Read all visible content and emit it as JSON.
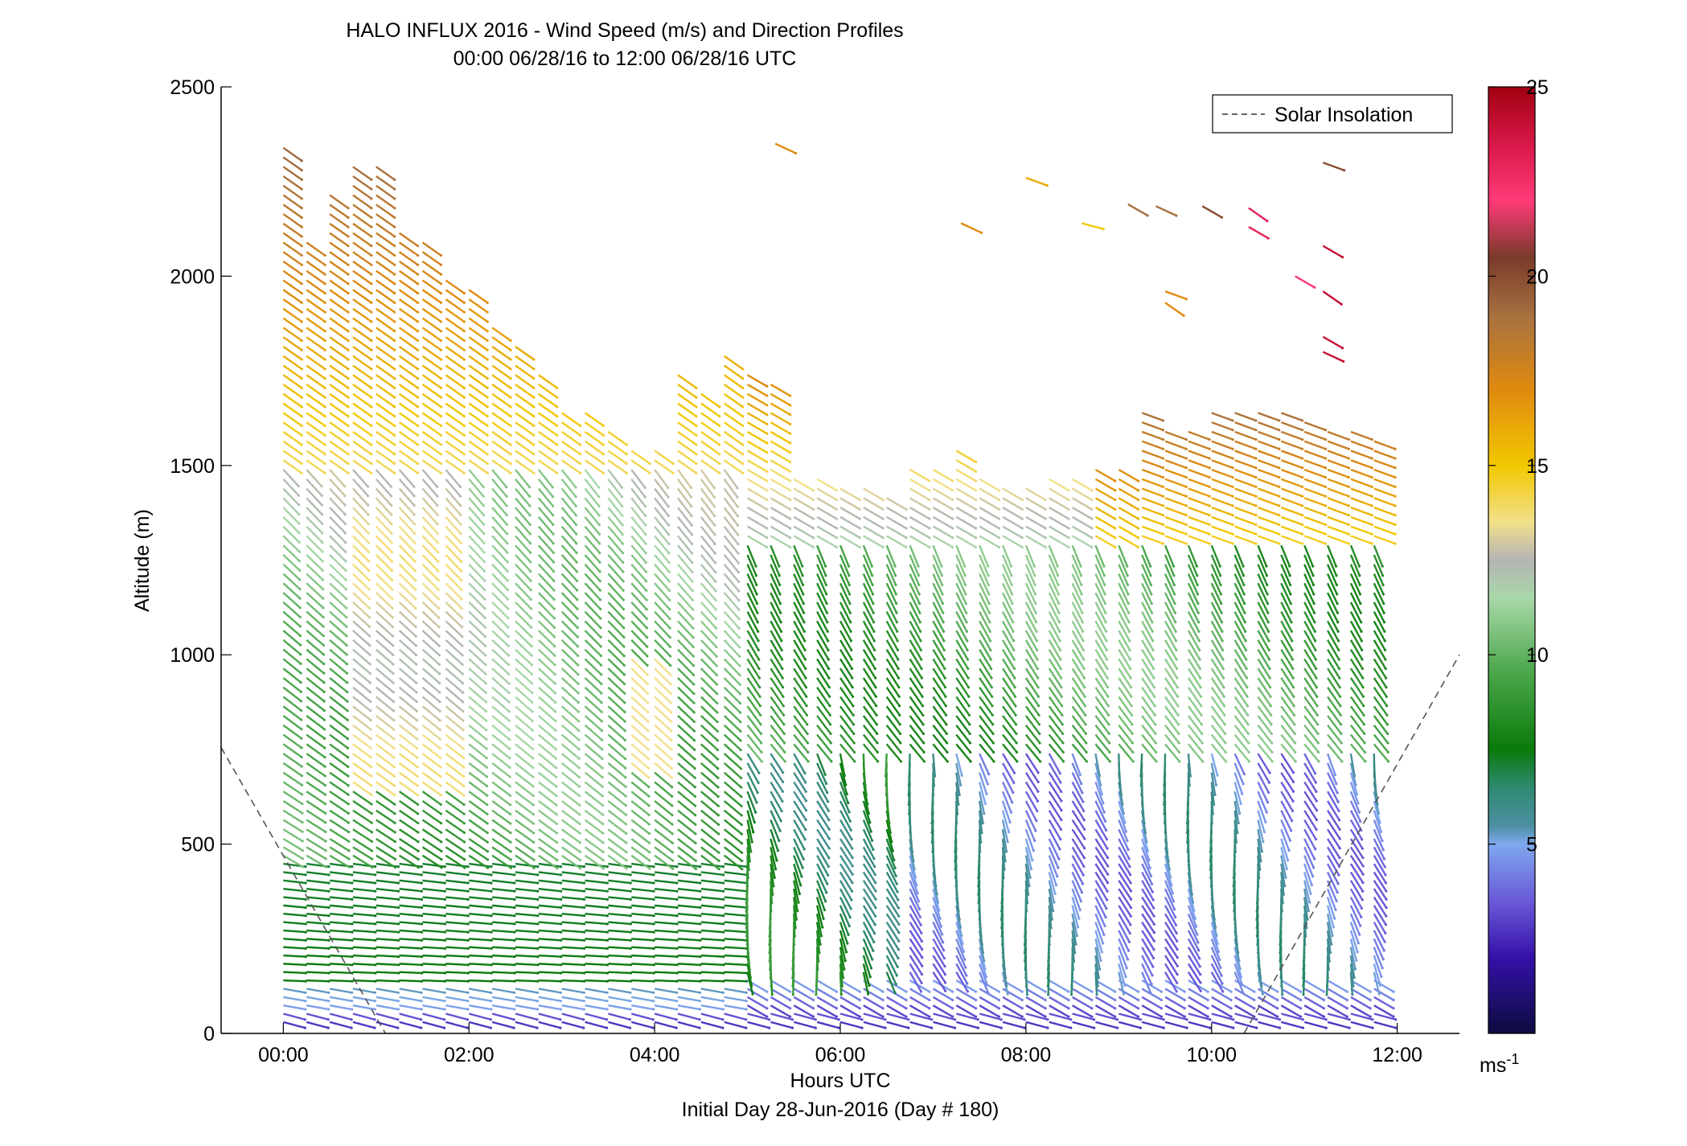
{
  "chart_data": {
    "type": "wind_barb_profile",
    "title": "HALO INFLUX 2016 - Wind Speed (m/s) and Direction Profiles",
    "subtitle": "00:00 06/28/16 to 12:00 06/28/16  UTC",
    "xlabel": "Hours UTC",
    "xlabel2": "Initial Day 28-Jun-2016 (Day # 180)",
    "ylabel": "Altitude (m)",
    "xlim": [
      -0.67,
      12.67
    ],
    "ylim": [
      0,
      2500
    ],
    "xticks": [
      0,
      2,
      4,
      6,
      8,
      10,
      12
    ],
    "xtick_labels": [
      "00:00",
      "02:00",
      "04:00",
      "06:00",
      "08:00",
      "10:00",
      "12:00"
    ],
    "yticks": [
      0,
      500,
      1000,
      1500,
      2000,
      2500
    ],
    "ytick_labels": [
      "0",
      "500",
      "1000",
      "1500",
      "2000",
      "2500"
    ],
    "legend": {
      "entries": [
        "Solar Insolation"
      ],
      "position": "top-right"
    },
    "colorbar": {
      "range": [
        0,
        25
      ],
      "ticks": [
        5,
        10,
        15,
        20,
        25
      ],
      "tick_labels": [
        "5",
        "10",
        "15",
        "20",
        "25"
      ],
      "unit": "ms",
      "unit_exp": "-1",
      "stops": [
        {
          "v": 0,
          "c": "#0c0c40"
        },
        {
          "v": 2,
          "c": "#3510a8"
        },
        {
          "v": 3.5,
          "c": "#6a5ad8"
        },
        {
          "v": 5,
          "c": "#7fa8ee"
        },
        {
          "v": 5.5,
          "c": "#4b8fa0"
        },
        {
          "v": 6.5,
          "c": "#2f8a72"
        },
        {
          "v": 7.5,
          "c": "#0a7a0a"
        },
        {
          "v": 9.5,
          "c": "#4aa64a"
        },
        {
          "v": 11.5,
          "c": "#a8d8a8"
        },
        {
          "v": 12.5,
          "c": "#b4b4b4"
        },
        {
          "v": 13.5,
          "c": "#f2e08a"
        },
        {
          "v": 15,
          "c": "#f2c800"
        },
        {
          "v": 17,
          "c": "#e08a10"
        },
        {
          "v": 19,
          "c": "#a67040"
        },
        {
          "v": 20.5,
          "c": "#7a3a2a"
        },
        {
          "v": 22,
          "c": "#ff3a78"
        },
        {
          "v": 23.5,
          "c": "#d81848"
        },
        {
          "v": 25,
          "c": "#a00010"
        }
      ]
    },
    "solar_insolation": {
      "style": "dashed",
      "color": "#555555",
      "segments": [
        [
          [
            -0.67,
            755
          ],
          [
            1.1,
            0
          ]
        ],
        [
          [
            10.35,
            0
          ],
          [
            12.67,
            1000
          ]
        ]
      ]
    },
    "profile_times": [
      0.0,
      0.25,
      0.5,
      0.75,
      1.0,
      1.25,
      1.5,
      1.75,
      2.0,
      2.25,
      2.5,
      2.75,
      3.0,
      3.25,
      3.5,
      3.75,
      4.0,
      4.25,
      4.5,
      4.75,
      5.0,
      5.25,
      5.5,
      5.75,
      6.0,
      6.25,
      6.5,
      6.75,
      7.0,
      7.25,
      7.5,
      7.75,
      8.0,
      8.25,
      8.5,
      8.75,
      9.0,
      9.25,
      9.5,
      9.75,
      10.0,
      10.25,
      10.5,
      10.75,
      11.0,
      11.25,
      11.5,
      11.75
    ],
    "profile_tops_m": [
      2350,
      2110,
      2220,
      2300,
      2300,
      2130,
      2110,
      2000,
      1970,
      1870,
      1820,
      1740,
      1660,
      1650,
      1610,
      1560,
      1560,
      1740,
      1690,
      1790,
      1750,
      1720,
      1480,
      1470,
      1460,
      1450,
      1430,
      1500,
      1500,
      1560,
      1470,
      1450,
      1440,
      1480,
      1470,
      1510,
      1500,
      1650,
      1600,
      1610,
      1660,
      1640,
      1660,
      1660,
      1620,
      1600,
      1590,
      1570
    ],
    "upper_barbs": [
      {
        "t": 5.3,
        "z": 2350,
        "speed": 17,
        "dir_deg": 295
      },
      {
        "t": 7.3,
        "z": 2140,
        "speed": 17,
        "dir_deg": 295
      },
      {
        "t": 8.0,
        "z": 2260,
        "speed": 16,
        "dir_deg": 290
      },
      {
        "t": 8.6,
        "z": 2140,
        "speed": 15,
        "dir_deg": 285
      },
      {
        "t": 9.1,
        "z": 2190,
        "speed": 19,
        "dir_deg": 300
      },
      {
        "t": 9.4,
        "z": 2185,
        "speed": 19,
        "dir_deg": 295
      },
      {
        "t": 9.9,
        "z": 2185,
        "speed": 20,
        "dir_deg": 300
      },
      {
        "t": 10.4,
        "z": 2180,
        "speed": 23,
        "dir_deg": 305
      },
      {
        "t": 10.4,
        "z": 2130,
        "speed": 23,
        "dir_deg": 300
      },
      {
        "t": 11.2,
        "z": 2300,
        "speed": 20,
        "dir_deg": 290
      },
      {
        "t": 11.2,
        "z": 2080,
        "speed": 24,
        "dir_deg": 300
      },
      {
        "t": 10.9,
        "z": 2000,
        "speed": 22,
        "dir_deg": 300
      },
      {
        "t": 11.2,
        "z": 1960,
        "speed": 24,
        "dir_deg": 305
      },
      {
        "t": 11.2,
        "z": 1840,
        "speed": 24,
        "dir_deg": 300
      },
      {
        "t": 11.2,
        "z": 1800,
        "speed": 24,
        "dir_deg": 295
      },
      {
        "t": 9.5,
        "z": 1960,
        "speed": 17,
        "dir_deg": 290
      },
      {
        "t": 9.5,
        "z": 1930,
        "speed": 17,
        "dir_deg": 305
      }
    ]
  }
}
